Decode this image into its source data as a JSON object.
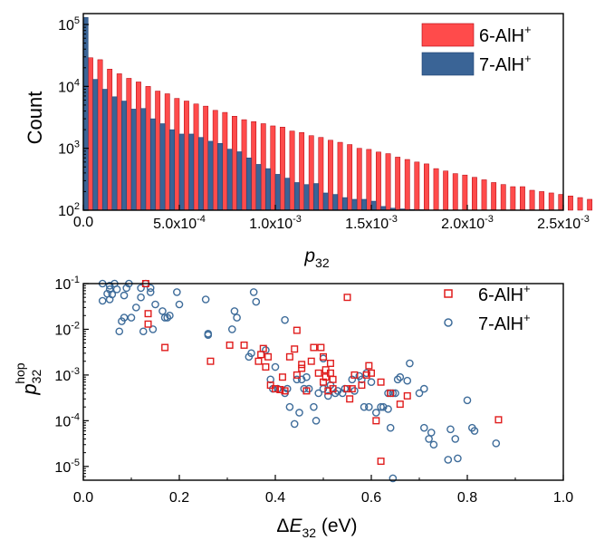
{
  "colors": {
    "red": "#ff4b4b",
    "red_edge": "#b0000a",
    "blue": "#3a6496",
    "blue_edge": "#1c3f6e",
    "sq": "#e01c1c",
    "circ": "#3e6c9a"
  },
  "chart_data": [
    {
      "type": "bar",
      "yscale": "log",
      "xlim": [
        0,
        0.0025
      ],
      "ylim": [
        100,
        150000
      ],
      "bin_width": 5e-05,
      "ylabel": "Count",
      "xlabel": {
        "main": "p",
        "sub": "32"
      },
      "xticks": [
        {
          "value": 0,
          "label": "0.0"
        },
        {
          "value": 0.0005,
          "mant": "5.0x10",
          "exp": "-4"
        },
        {
          "value": 0.001,
          "mant": "1.0x10",
          "exp": "-3"
        },
        {
          "value": 0.0015,
          "mant": "1.5x10",
          "exp": "-3"
        },
        {
          "value": 0.002,
          "mant": "2.0x10",
          "exp": "-3"
        },
        {
          "value": 0.0025,
          "mant": "2.5x10",
          "exp": "-3"
        }
      ],
      "yticks": [
        {
          "value": 100,
          "base": "10",
          "exp": "2"
        },
        {
          "value": 1000,
          "base": "10",
          "exp": "3"
        },
        {
          "value": 10000,
          "base": "10",
          "exp": "4"
        },
        {
          "value": 100000,
          "base": "10",
          "exp": "5"
        }
      ],
      "legend_position": "top-right",
      "series": [
        {
          "name": "6-AlH",
          "sup": "+",
          "color_key": "red",
          "values": [
            29000,
            27000,
            19000,
            16000,
            13500,
            11800,
            10000,
            8400,
            7600,
            6400,
            5800,
            5200,
            4800,
            4100,
            3800,
            3300,
            2900,
            2700,
            2500,
            2300,
            2200,
            1900,
            1800,
            1600,
            1500,
            1350,
            1250,
            1150,
            1000,
            960,
            870,
            820,
            720,
            660,
            600,
            560,
            470,
            430,
            390,
            370,
            340,
            310,
            280,
            260,
            240,
            240,
            210,
            200,
            190,
            180,
            170,
            160,
            150,
            140,
            135,
            130,
            125,
            120,
            115,
            110,
            108,
            105,
            104,
            103,
            102,
            101,
            101,
            100,
            100,
            100,
            100,
            100,
            100,
            100,
            100,
            100,
            100,
            100,
            100,
            100,
            100,
            100,
            100,
            100,
            100,
            100,
            100,
            100,
            100,
            100,
            100,
            100,
            100,
            100,
            100,
            100,
            100,
            100,
            100,
            100
          ]
        },
        {
          "name": "7-AlH",
          "sup": "+",
          "color_key": "blue",
          "values": [
            130000,
            13000,
            9000,
            6800,
            5800,
            4300,
            4400,
            3000,
            2500,
            2000,
            1700,
            1700,
            1500,
            1300,
            1200,
            970,
            880,
            700,
            550,
            470,
            380,
            330,
            280,
            260,
            270,
            190,
            180,
            160,
            150,
            150,
            140,
            115,
            108,
            105,
            103,
            102,
            101,
            100,
            100,
            100,
            100,
            100,
            100,
            100,
            100,
            100,
            100,
            100,
            100,
            100
          ]
        }
      ]
    },
    {
      "type": "scatter",
      "yscale": "log",
      "xlim": [
        0,
        1.0
      ],
      "ylim": [
        5e-06,
        0.1
      ],
      "xlabel": {
        "delta": "Δ",
        "main": "E",
        "sub": "32",
        "unit": " (eV)"
      },
      "ylabel": {
        "main": "p",
        "sub": "32",
        "sup": "hop"
      },
      "xticks": [
        {
          "value": 0,
          "label": "0.0"
        },
        {
          "value": 0.2,
          "label": "0.2"
        },
        {
          "value": 0.4,
          "label": "0.4"
        },
        {
          "value": 0.6,
          "label": "0.6"
        },
        {
          "value": 0.8,
          "label": "0.8"
        },
        {
          "value": 1.0,
          "label": "1.0"
        }
      ],
      "yticks": [
        {
          "value": 1e-05,
          "base": "10",
          "exp": "-5"
        },
        {
          "value": 0.0001,
          "base": "10",
          "exp": "-4"
        },
        {
          "value": 0.001,
          "base": "10",
          "exp": "-3"
        },
        {
          "value": 0.01,
          "base": "10",
          "exp": "-2"
        },
        {
          "value": 0.1,
          "base": "10",
          "exp": "-1"
        }
      ],
      "legend_position": "top-right",
      "series": [
        {
          "name": "6-AlH",
          "sup": "+",
          "marker": "square",
          "color_key": "sq",
          "points": [
            [
              0.13,
              0.1
            ],
            [
              0.135,
              0.022
            ],
            [
              0.135,
              0.013
            ],
            [
              0.17,
              0.004
            ],
            [
              0.265,
              0.002
            ],
            [
              0.305,
              0.0045
            ],
            [
              0.335,
              0.0045
            ],
            [
              0.365,
              0.002
            ],
            [
              0.37,
              0.0028
            ],
            [
              0.375,
              0.0038
            ],
            [
              0.385,
              0.0025
            ],
            [
              0.38,
              0.0015
            ],
            [
              0.39,
              0.0006
            ],
            [
              0.4,
              0.0005
            ],
            [
              0.41,
              0.00048
            ],
            [
              0.42,
              0.00045
            ],
            [
              0.415,
              0.0009
            ],
            [
              0.43,
              0.0025
            ],
            [
              0.44,
              0.0037
            ],
            [
              0.445,
              0.0095
            ],
            [
              0.445,
              0.001
            ],
            [
              0.455,
              0.0014
            ],
            [
              0.455,
              0.0017
            ],
            [
              0.465,
              0.00045
            ],
            [
              0.475,
              0.002
            ],
            [
              0.48,
              0.004
            ],
            [
              0.49,
              0.0011
            ],
            [
              0.495,
              0.004
            ],
            [
              0.5,
              0.0007
            ],
            [
              0.5,
              0.0025
            ],
            [
              0.505,
              0.0013
            ],
            [
              0.505,
              0.0009
            ],
            [
              0.51,
              0.00045
            ],
            [
              0.515,
              0.0018
            ],
            [
              0.515,
              0.0011
            ],
            [
              0.52,
              0.0008
            ],
            [
              0.52,
              0.0005
            ],
            [
              0.55,
              0.05
            ],
            [
              0.55,
              0.0005
            ],
            [
              0.555,
              0.0003
            ],
            [
              0.56,
              0.0005
            ],
            [
              0.565,
              0.001
            ],
            [
              0.58,
              0.0006
            ],
            [
              0.59,
              0.001
            ],
            [
              0.595,
              0.0016
            ],
            [
              0.6,
              0.0011
            ],
            [
              0.61,
              0.0001
            ],
            [
              0.62,
              0.0007
            ],
            [
              0.62,
              1.3e-05
            ],
            [
              0.64,
              0.0004
            ],
            [
              0.66,
              0.00023
            ],
            [
              0.675,
              0.00035
            ],
            [
              0.865,
              0.000105
            ]
          ]
        },
        {
          "name": "7-AlH",
          "sup": "+",
          "marker": "circle",
          "color_key": "circ",
          "points": [
            [
              0.04,
              0.1
            ],
            [
              0.04,
              0.042
            ],
            [
              0.05,
              0.06
            ],
            [
              0.055,
              0.045
            ],
            [
              0.055,
              0.09
            ],
            [
              0.055,
              0.075
            ],
            [
              0.06,
              0.058
            ],
            [
              0.065,
              0.1
            ],
            [
              0.07,
              0.075
            ],
            [
              0.075,
              0.009
            ],
            [
              0.08,
              0.015
            ],
            [
              0.085,
              0.018
            ],
            [
              0.085,
              0.055
            ],
            [
              0.09,
              0.08
            ],
            [
              0.095,
              0.1
            ],
            [
              0.1,
              0.018
            ],
            [
              0.11,
              0.03
            ],
            [
              0.12,
              0.05
            ],
            [
              0.12,
              0.08
            ],
            [
              0.125,
              0.009
            ],
            [
              0.13,
              0.1
            ],
            [
              0.14,
              0.08
            ],
            [
              0.14,
              0.065
            ],
            [
              0.145,
              0.01
            ],
            [
              0.15,
              0.035
            ],
            [
              0.165,
              0.025
            ],
            [
              0.17,
              0.018
            ],
            [
              0.175,
              0.018
            ],
            [
              0.18,
              0.02
            ],
            [
              0.195,
              0.065
            ],
            [
              0.2,
              0.035
            ],
            [
              0.255,
              0.045
            ],
            [
              0.26,
              0.008
            ],
            [
              0.26,
              0.0075
            ],
            [
              0.31,
              0.01
            ],
            [
              0.315,
              0.025
            ],
            [
              0.32,
              0.018
            ],
            [
              0.345,
              0.0025
            ],
            [
              0.35,
              0.003
            ],
            [
              0.355,
              0.065
            ],
            [
              0.36,
              0.04
            ],
            [
              0.38,
              0.0035
            ],
            [
              0.39,
              0.0008
            ],
            [
              0.395,
              0.0005
            ],
            [
              0.4,
              0.0015
            ],
            [
              0.405,
              0.0005
            ],
            [
              0.42,
              0.0004
            ],
            [
              0.42,
              0.016
            ],
            [
              0.425,
              0.0005
            ],
            [
              0.43,
              0.0002
            ],
            [
              0.44,
              8.5e-05
            ],
            [
              0.445,
              0.0008
            ],
            [
              0.45,
              0.00015
            ],
            [
              0.455,
              0.0008
            ],
            [
              0.46,
              0.0005
            ],
            [
              0.465,
              0.0009
            ],
            [
              0.47,
              0.0005
            ],
            [
              0.48,
              0.0002
            ],
            [
              0.485,
              0.0001
            ],
            [
              0.49,
              0.0004
            ],
            [
              0.5,
              0.0005
            ],
            [
              0.5,
              0.0023
            ],
            [
              0.51,
              0.00035
            ],
            [
              0.515,
              0.0006
            ],
            [
              0.525,
              0.0004
            ],
            [
              0.53,
              0.00045
            ],
            [
              0.54,
              0.0004
            ],
            [
              0.545,
              0.0005
            ],
            [
              0.56,
              0.0008
            ],
            [
              0.565,
              0.00045
            ],
            [
              0.575,
              0.00095
            ],
            [
              0.58,
              0.0008
            ],
            [
              0.585,
              0.0002
            ],
            [
              0.59,
              0.0011
            ],
            [
              0.595,
              0.0002
            ],
            [
              0.6,
              0.0007
            ],
            [
              0.61,
              0.00015
            ],
            [
              0.62,
              0.0002
            ],
            [
              0.625,
              0.0002
            ],
            [
              0.635,
              0.0004
            ],
            [
              0.635,
              0.00018
            ],
            [
              0.64,
              0.0004
            ],
            [
              0.64,
              7e-05
            ],
            [
              0.645,
              5.5e-06
            ],
            [
              0.645,
              0.0004
            ],
            [
              0.65,
              0.0004
            ],
            [
              0.655,
              0.0008
            ],
            [
              0.66,
              0.0009
            ],
            [
              0.675,
              0.00075
            ],
            [
              0.68,
              0.0018
            ],
            [
              0.7,
              0.0004
            ],
            [
              0.71,
              0.0005
            ],
            [
              0.71,
              7e-05
            ],
            [
              0.72,
              4e-05
            ],
            [
              0.725,
              5.5e-05
            ],
            [
              0.73,
              3e-05
            ],
            [
              0.76,
              1.4e-05
            ],
            [
              0.765,
              6.5e-05
            ],
            [
              0.775,
              4e-05
            ],
            [
              0.78,
              1.5e-05
            ],
            [
              0.8,
              0.00028
            ],
            [
              0.81,
              7e-05
            ],
            [
              0.815,
              6e-05
            ],
            [
              0.86,
              3.2e-05
            ]
          ]
        }
      ]
    }
  ]
}
